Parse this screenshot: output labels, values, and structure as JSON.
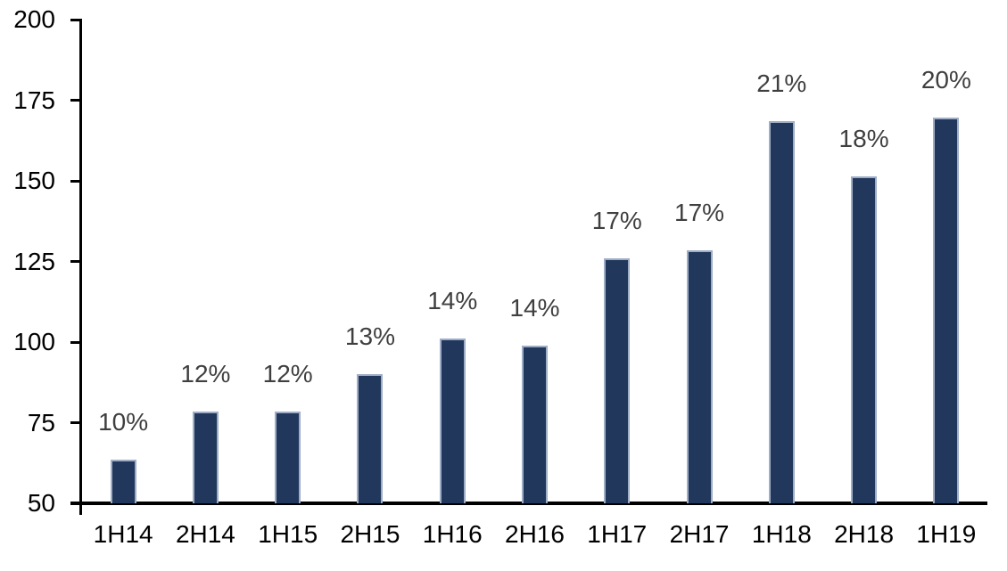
{
  "chart_data": {
    "type": "bar",
    "categories": [
      "1H14",
      "2H14",
      "1H15",
      "2H15",
      "1H16",
      "2H16",
      "1H17",
      "2H17",
      "1H18",
      "2H18",
      "1H19"
    ],
    "values": [
      63.5,
      78.5,
      78.5,
      90,
      101,
      99,
      126,
      128.5,
      168.5,
      151.5,
      169.5
    ],
    "data_labels": [
      "10%",
      "12%",
      "12%",
      "13%",
      "14%",
      "14%",
      "17%",
      "17%",
      "21%",
      "18%",
      "20%"
    ],
    "title": "",
    "xlabel": "",
    "ylabel": "",
    "ylim": [
      50,
      200
    ],
    "yticks": [
      50,
      75,
      100,
      125,
      150,
      175,
      200
    ],
    "grid": "off",
    "legend": "none",
    "colors": {
      "bar_fill": "#21385C",
      "bar_border": "#9FADC6",
      "data_label": "#3F3F3F",
      "axis_text": "#000000",
      "axis_line": "#000000",
      "background": "#FFFFFF"
    }
  }
}
